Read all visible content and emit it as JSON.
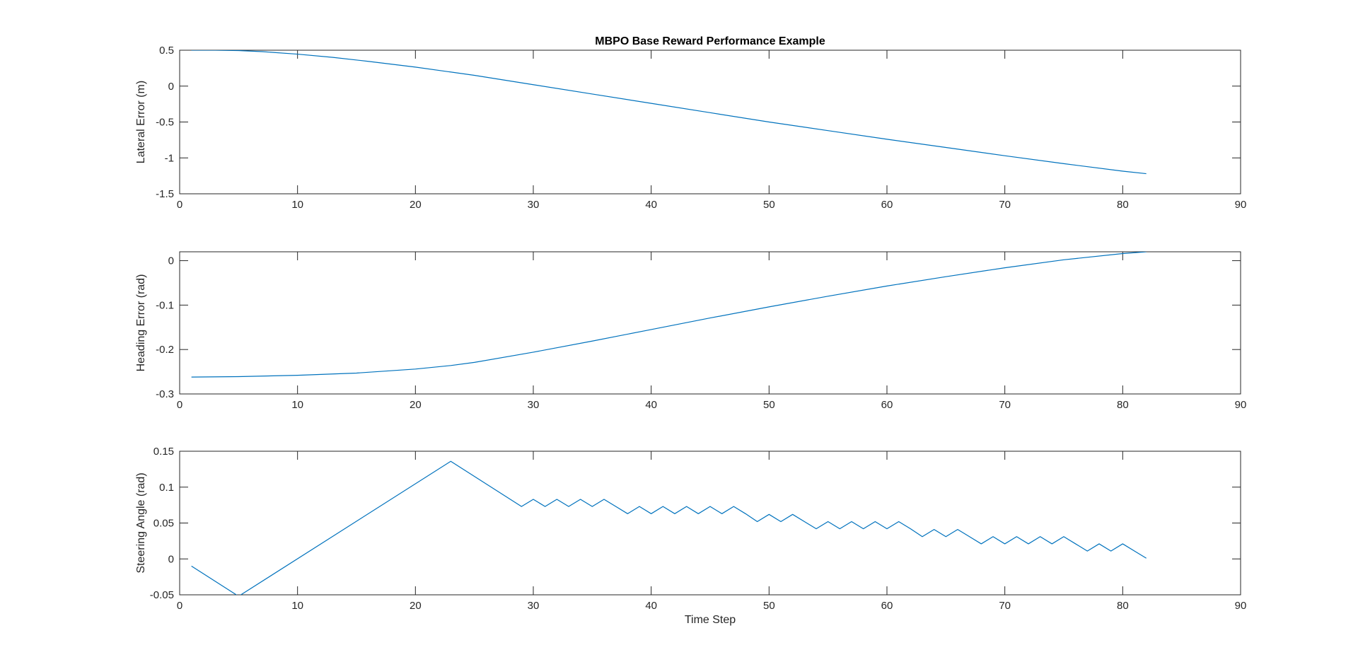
{
  "chart_data": [
    {
      "type": "line",
      "title": "MBPO Base Reward Performance Example",
      "xlabel": "",
      "ylabel": "Lateral Error (m)",
      "xlim": [
        0,
        90
      ],
      "ylim": [
        -1.5,
        0.5
      ],
      "xticks": [
        0,
        10,
        20,
        30,
        40,
        50,
        60,
        70,
        80,
        90
      ],
      "yticks": [
        -1.5,
        -1,
        -0.5,
        0,
        0.5
      ],
      "xtick_labels": [
        "0",
        "10",
        "20",
        "30",
        "40",
        "50",
        "60",
        "70",
        "80",
        "90"
      ],
      "ytick_labels": [
        "-1.5",
        "-1",
        "-0.5",
        "0",
        "0.5"
      ],
      "grid": false,
      "color": "#0072BD",
      "x": [
        1,
        3,
        5,
        7,
        10,
        13,
        16,
        20,
        25,
        30,
        35,
        40,
        45,
        50,
        55,
        60,
        65,
        70,
        75,
        80,
        82
      ],
      "y": [
        0.5,
        0.5,
        0.495,
        0.48,
        0.445,
        0.4,
        0.345,
        0.265,
        0.15,
        0.02,
        -0.11,
        -0.24,
        -0.37,
        -0.5,
        -0.62,
        -0.74,
        -0.855,
        -0.97,
        -1.08,
        -1.185,
        -1.22
      ]
    },
    {
      "type": "line",
      "title": "",
      "xlabel": "",
      "ylabel": "Heading Error (rad)",
      "xlim": [
        0,
        90
      ],
      "ylim": [
        -0.3,
        0.02
      ],
      "xticks": [
        0,
        10,
        20,
        30,
        40,
        50,
        60,
        70,
        80,
        90
      ],
      "yticks": [
        -0.3,
        -0.2,
        -0.1,
        0
      ],
      "xtick_labels": [
        "0",
        "10",
        "20",
        "30",
        "40",
        "50",
        "60",
        "70",
        "80",
        "90"
      ],
      "ytick_labels": [
        "-0.3",
        "-0.2",
        "-0.1",
        "0"
      ],
      "grid": false,
      "color": "#0072BD",
      "x": [
        1,
        5,
        10,
        15,
        20,
        23,
        25,
        30,
        35,
        40,
        45,
        50,
        55,
        60,
        65,
        70,
        75,
        80,
        82
      ],
      "y": [
        -0.262,
        -0.261,
        -0.258,
        -0.253,
        -0.244,
        -0.236,
        -0.229,
        -0.206,
        -0.181,
        -0.155,
        -0.129,
        -0.104,
        -0.08,
        -0.057,
        -0.036,
        -0.016,
        0.002,
        0.016,
        0.02
      ]
    },
    {
      "type": "line",
      "title": "",
      "xlabel": "Time Step",
      "ylabel": "Steering Angle (rad)",
      "xlim": [
        0,
        90
      ],
      "ylim": [
        -0.05,
        0.15
      ],
      "xticks": [
        0,
        10,
        20,
        30,
        40,
        50,
        60,
        70,
        80,
        90
      ],
      "yticks": [
        -0.05,
        0,
        0.05,
        0.1,
        0.15
      ],
      "xtick_labels": [
        "0",
        "10",
        "20",
        "30",
        "40",
        "50",
        "60",
        "70",
        "80",
        "90"
      ],
      "ytick_labels": [
        "-0.05",
        "0",
        "0.05",
        "0.1",
        "0.15"
      ],
      "grid": false,
      "color": "#0072BD",
      "x": [
        1,
        5,
        23,
        29,
        30,
        31,
        32,
        33,
        34,
        35,
        36,
        37,
        38,
        39,
        40,
        41,
        42,
        43,
        44,
        45,
        46,
        47,
        48,
        49,
        50,
        51,
        52,
        53,
        54,
        55,
        56,
        57,
        58,
        59,
        60,
        61,
        62,
        63,
        64,
        65,
        66,
        67,
        68,
        69,
        70,
        71,
        72,
        73,
        74,
        75,
        76,
        77,
        78,
        79,
        80,
        81,
        82
      ],
      "y": [
        -0.01,
        -0.052,
        0.136,
        0.073,
        0.083,
        0.073,
        0.083,
        0.073,
        0.083,
        0.073,
        0.083,
        0.073,
        0.063,
        0.073,
        0.063,
        0.073,
        0.063,
        0.073,
        0.063,
        0.073,
        0.063,
        0.073,
        0.063,
        0.052,
        0.062,
        0.052,
        0.062,
        0.052,
        0.042,
        0.052,
        0.042,
        0.052,
        0.042,
        0.052,
        0.042,
        0.052,
        0.042,
        0.031,
        0.041,
        0.031,
        0.041,
        0.031,
        0.021,
        0.031,
        0.021,
        0.031,
        0.021,
        0.031,
        0.021,
        0.031,
        0.021,
        0.011,
        0.021,
        0.011,
        0.021,
        0.011,
        0.001
      ]
    }
  ]
}
